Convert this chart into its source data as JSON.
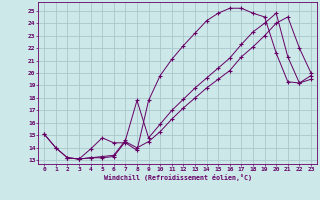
{
  "xlabel": "Windchill (Refroidissement éolien,°C)",
  "bg_color": "#cce8e8",
  "line_color": "#660066",
  "grid_color": "#aac8cc",
  "xlim": [
    -0.5,
    23.5
  ],
  "ylim": [
    12.7,
    25.7
  ],
  "yticks": [
    13,
    14,
    15,
    16,
    17,
    18,
    19,
    20,
    21,
    22,
    23,
    24,
    25
  ],
  "xticks": [
    0,
    1,
    2,
    3,
    4,
    5,
    6,
    7,
    8,
    9,
    10,
    11,
    12,
    13,
    14,
    15,
    16,
    17,
    18,
    19,
    20,
    21,
    22,
    23
  ],
  "line1_x": [
    0,
    1,
    2,
    3,
    4,
    5,
    6,
    7,
    8,
    9,
    10,
    11,
    12,
    13,
    14,
    15,
    16,
    17,
    18,
    19,
    20,
    21,
    22,
    23
  ],
  "line1_y": [
    15.1,
    14.0,
    13.2,
    13.1,
    13.9,
    14.8,
    14.4,
    14.4,
    13.8,
    17.8,
    19.8,
    21.1,
    22.2,
    23.2,
    24.2,
    24.8,
    25.2,
    25.2,
    24.8,
    24.5,
    21.6,
    19.3,
    19.2,
    19.8
  ],
  "line2_x": [
    0,
    1,
    2,
    3,
    4,
    5,
    6,
    7,
    8,
    9,
    10,
    11,
    12,
    13,
    14,
    15,
    16,
    17,
    18,
    19,
    20,
    21,
    22,
    23
  ],
  "line2_y": [
    15.1,
    14.0,
    13.2,
    13.1,
    13.2,
    13.2,
    13.3,
    14.5,
    14.0,
    14.5,
    15.3,
    16.3,
    17.2,
    18.0,
    18.8,
    19.5,
    20.2,
    21.3,
    22.1,
    23.0,
    24.0,
    24.5,
    22.0,
    20.0
  ],
  "line3_x": [
    2,
    3,
    4,
    5,
    6,
    7,
    8,
    9,
    10,
    11,
    12,
    13,
    14,
    15,
    16,
    17,
    18,
    19,
    20,
    21,
    22,
    23
  ],
  "line3_y": [
    13.2,
    13.1,
    13.2,
    13.3,
    13.4,
    14.6,
    17.8,
    14.8,
    15.9,
    17.0,
    17.9,
    18.8,
    19.6,
    20.4,
    21.2,
    22.3,
    23.3,
    24.0,
    24.8,
    21.3,
    19.2,
    19.5
  ]
}
